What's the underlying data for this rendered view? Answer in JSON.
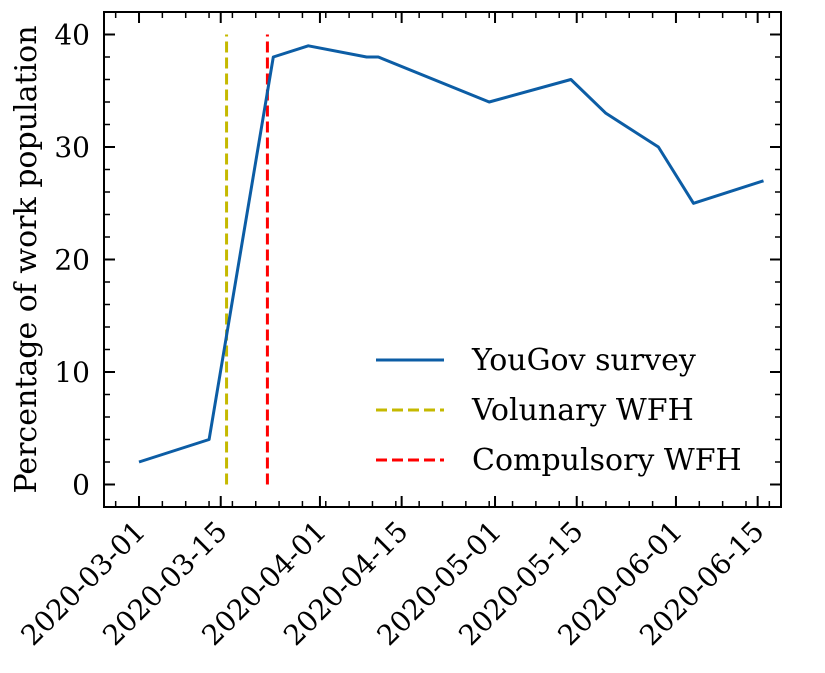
{
  "chart_data": {
    "type": "line",
    "title": "",
    "xlabel": "",
    "ylabel": "Percentage of work population",
    "x_type": "date",
    "xlim": [
      "2020-02-24",
      "2020-06-19"
    ],
    "ylim": [
      -2,
      42
    ],
    "xticks": [
      "2020-03-01",
      "2020-03-15",
      "2020-04-01",
      "2020-04-15",
      "2020-05-01",
      "2020-05-15",
      "2020-06-01",
      "2020-06-15"
    ],
    "yticks": [
      0,
      10,
      20,
      30,
      40
    ],
    "grid": false,
    "legend_position": "lower-right",
    "series": [
      {
        "name": "YouGov survey",
        "color": "#0C5DA5",
        "style": "solid",
        "x": [
          "2020-03-01",
          "2020-03-13",
          "2020-03-24",
          "2020-03-30",
          "2020-04-09",
          "2020-04-11",
          "2020-04-30",
          "2020-05-14",
          "2020-05-20",
          "2020-05-29",
          "2020-06-04",
          "2020-06-16"
        ],
        "y": [
          2,
          4,
          38,
          39,
          38,
          38,
          34,
          36,
          33,
          30,
          25,
          27
        ]
      }
    ],
    "vlines": [
      {
        "name": "Volunary WFH",
        "x": "2020-03-16",
        "ymin": 0,
        "ymax": 40,
        "color": "#C5B900",
        "style": "dashed"
      },
      {
        "name": "Compulsory WFH",
        "x": "2020-03-23",
        "ymin": 0,
        "ymax": 40,
        "color": "#FF0000",
        "style": "dashed"
      }
    ]
  }
}
